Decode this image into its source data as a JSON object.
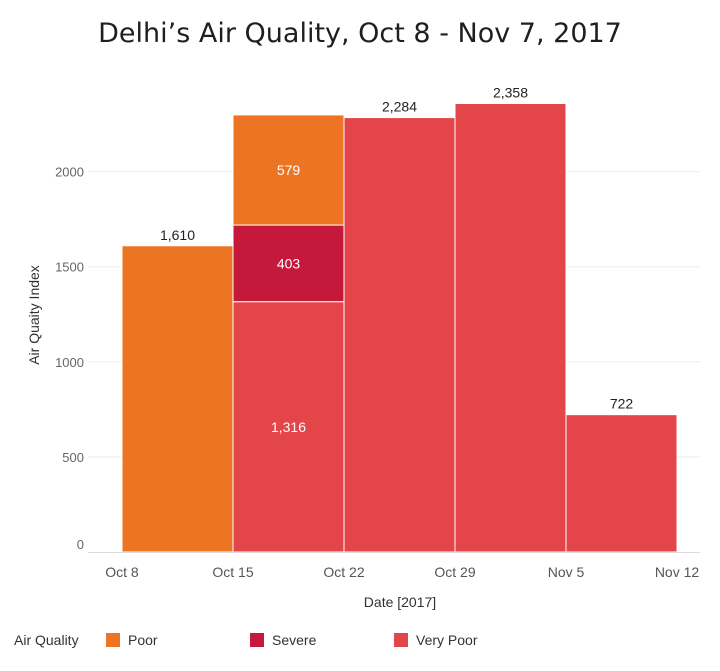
{
  "chart_data": {
    "type": "bar",
    "title": "Delhi’s Air Quality, Oct 8 - Nov 7, 2017",
    "xlabel": "Date [2017]",
    "ylabel": "Air Quaity Index",
    "ylim": [
      0,
      2450
    ],
    "y_ticks": [
      "0",
      "500",
      "1000",
      "1500",
      "2000"
    ],
    "y_tick_values": [
      0,
      500,
      1000,
      1500,
      2000
    ],
    "x_ticks": [
      "Oct 8",
      "Oct 15",
      "Oct 22",
      "Oct 29",
      "Nov 5",
      "Nov 12"
    ],
    "stacked": true,
    "grid": true,
    "categories": [
      "Oct 8",
      "Oct 15",
      "Oct 22",
      "Oct 29",
      "Nov 5"
    ],
    "series": [
      {
        "name": "Very Poor",
        "color": "#e44548",
        "values": [
          0,
          1316,
          2284,
          2358,
          722
        ],
        "labels": [
          "",
          "1,316",
          "",
          "",
          ""
        ]
      },
      {
        "name": "Severe",
        "color": "#c4193a",
        "values": [
          0,
          403,
          0,
          0,
          0
        ],
        "labels": [
          "",
          "403",
          "",
          "",
          ""
        ]
      },
      {
        "name": "Poor",
        "color": "#ed7423",
        "values": [
          1610,
          579,
          0,
          0,
          0
        ],
        "labels": [
          "",
          "579",
          "",
          "",
          ""
        ]
      }
    ],
    "totals": [
      "1,610",
      "",
      "2,284",
      "2,358",
      "722"
    ],
    "legend": {
      "title": "Air Quality",
      "position": "bottom",
      "items": [
        {
          "name": "Poor",
          "color": "#ed7423"
        },
        {
          "name": "Severe",
          "color": "#c4193a"
        },
        {
          "name": "Very Poor",
          "color": "#e44548"
        }
      ]
    }
  }
}
